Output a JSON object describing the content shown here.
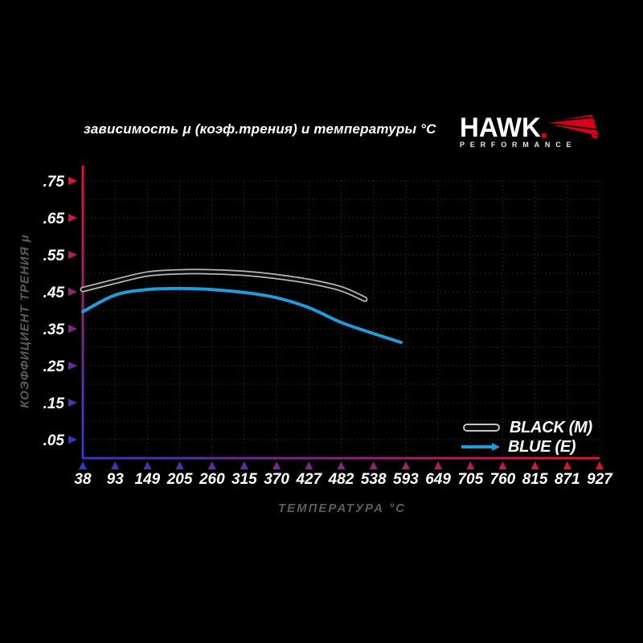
{
  "header": {
    "logo": {
      "brand": "HAWK",
      "sub": "PERFORMANCE"
    }
  },
  "chart_data": {
    "type": "line",
    "title": "зависимость μ (коэф.трения) и температуры °C",
    "xlabel": "ТЕМПЕРАТУРА °C",
    "ylabel": "КОЭФФИЦИЕНТ ТРЕНИЯ μ",
    "x_ticks": [
      38,
      93,
      149,
      205,
      260,
      315,
      370,
      427,
      482,
      538,
      593,
      649,
      705,
      760,
      815,
      871,
      927
    ],
    "y_ticks": [
      0.05,
      0.15,
      0.25,
      0.35,
      0.45,
      0.55,
      0.65,
      0.75
    ],
    "y_tick_labels": [
      ".05",
      ".15",
      ".25",
      ".35",
      ".45",
      ".55",
      ".65",
      ".75"
    ],
    "xlim": [
      38,
      927
    ],
    "ylim": [
      0,
      0.75
    ],
    "grid": "dotted",
    "legend_position": "inside-bottom-right",
    "series": [
      {
        "name": "BLACK (M)",
        "style": "black-with-light-outline",
        "color": "#0d0d0d",
        "outline_color": "#b5b5b5",
        "points": [
          [
            38,
            0.456
          ],
          [
            93,
            0.478
          ],
          [
            149,
            0.498
          ],
          [
            205,
            0.504
          ],
          [
            260,
            0.504
          ],
          [
            315,
            0.5
          ],
          [
            370,
            0.491
          ],
          [
            427,
            0.478
          ],
          [
            482,
            0.458
          ],
          [
            523,
            0.43
          ]
        ]
      },
      {
        "name": "BLUE (E)",
        "style": "solid",
        "color": "#1f9cd9",
        "points": [
          [
            38,
            0.396
          ],
          [
            93,
            0.441
          ],
          [
            149,
            0.456
          ],
          [
            205,
            0.459
          ],
          [
            260,
            0.456
          ],
          [
            315,
            0.448
          ],
          [
            370,
            0.434
          ],
          [
            427,
            0.407
          ],
          [
            482,
            0.367
          ],
          [
            538,
            0.337
          ],
          [
            585,
            0.313
          ]
        ]
      }
    ]
  },
  "colors": {
    "background": "#000000",
    "axis_hot": "#e8112d",
    "axis_cold": "#3137c8",
    "grid": "#2e2e2e",
    "tick_label": "#ffffff",
    "axis_title": "#5d5d5d",
    "logo_red": "#d6001c"
  }
}
